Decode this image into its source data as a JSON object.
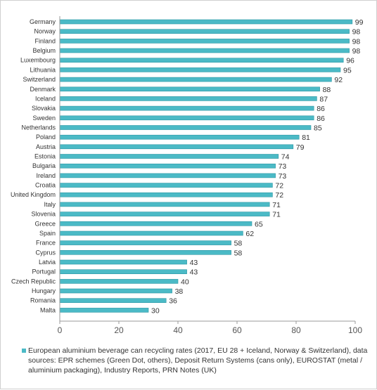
{
  "colors": {
    "bar": "#4bbac6",
    "bar_edge": "#2e98a4",
    "axis": "#9a9a9a",
    "text": "#333333"
  },
  "chart_data": {
    "type": "bar",
    "orientation": "horizontal",
    "categories": [
      "Germany",
      "Norway",
      "Finland",
      "Belgium",
      "Luxembourg",
      "Lithuania",
      "Switzerland",
      "Denmark",
      "Iceland",
      "Slovakia",
      "Sweden",
      "Netherlands",
      "Poland",
      "Austria",
      "Estonia",
      "Bulgaria",
      "Ireland",
      "Croatia",
      "United Kingdom",
      "Italy",
      "Slovenia",
      "Greece",
      "Spain",
      "France",
      "Cyprus",
      "Latvia",
      "Portugal",
      "Czech Republic",
      "Hungary",
      "Romania",
      "Malta"
    ],
    "series": [
      {
        "name": "European aluminium beverage can recycling rates (2017, EU 28 + Iceland, Norway & Switzerland), data sources: EPR schemes (Green Dot, others), Deposit Return Systems (cans only), EUROSTAT (metal / aluminium packaging), Industry Reports, PRN Notes (UK)",
        "values": [
          99,
          98,
          98,
          98,
          96,
          95,
          92,
          88,
          87,
          86,
          86,
          85,
          81,
          79,
          74,
          73,
          73,
          72,
          72,
          71,
          71,
          65,
          62,
          58,
          58,
          43,
          43,
          40,
          38,
          36,
          30
        ]
      }
    ],
    "xlim": [
      0,
      100
    ],
    "xticks": [
      "0",
      "20",
      "40",
      "60",
      "80",
      "100"
    ],
    "grid": false,
    "legend_position": "bottom"
  }
}
